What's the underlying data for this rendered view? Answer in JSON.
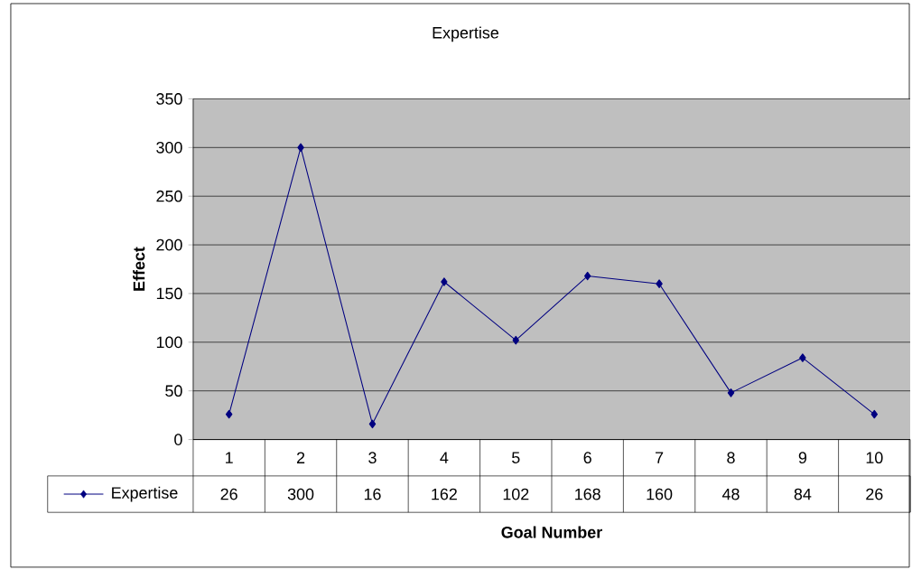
{
  "chart_data": {
    "type": "line",
    "title": "Expertise",
    "xlabel": "Goal Number",
    "ylabel": "Effect",
    "categories": [
      "1",
      "2",
      "3",
      "4",
      "5",
      "6",
      "7",
      "8",
      "9",
      "10"
    ],
    "series": [
      {
        "name": "Expertise",
        "color": "#000080",
        "values": [
          26,
          300,
          16,
          162,
          102,
          168,
          160,
          48,
          84,
          26
        ]
      }
    ],
    "ylim": [
      0,
      350
    ],
    "yticks": [
      0,
      50,
      100,
      150,
      200,
      250,
      300,
      350
    ],
    "grid": "y",
    "legend": "bottom",
    "data_labels": true,
    "marker": "diamond",
    "line_style": "solid"
  }
}
